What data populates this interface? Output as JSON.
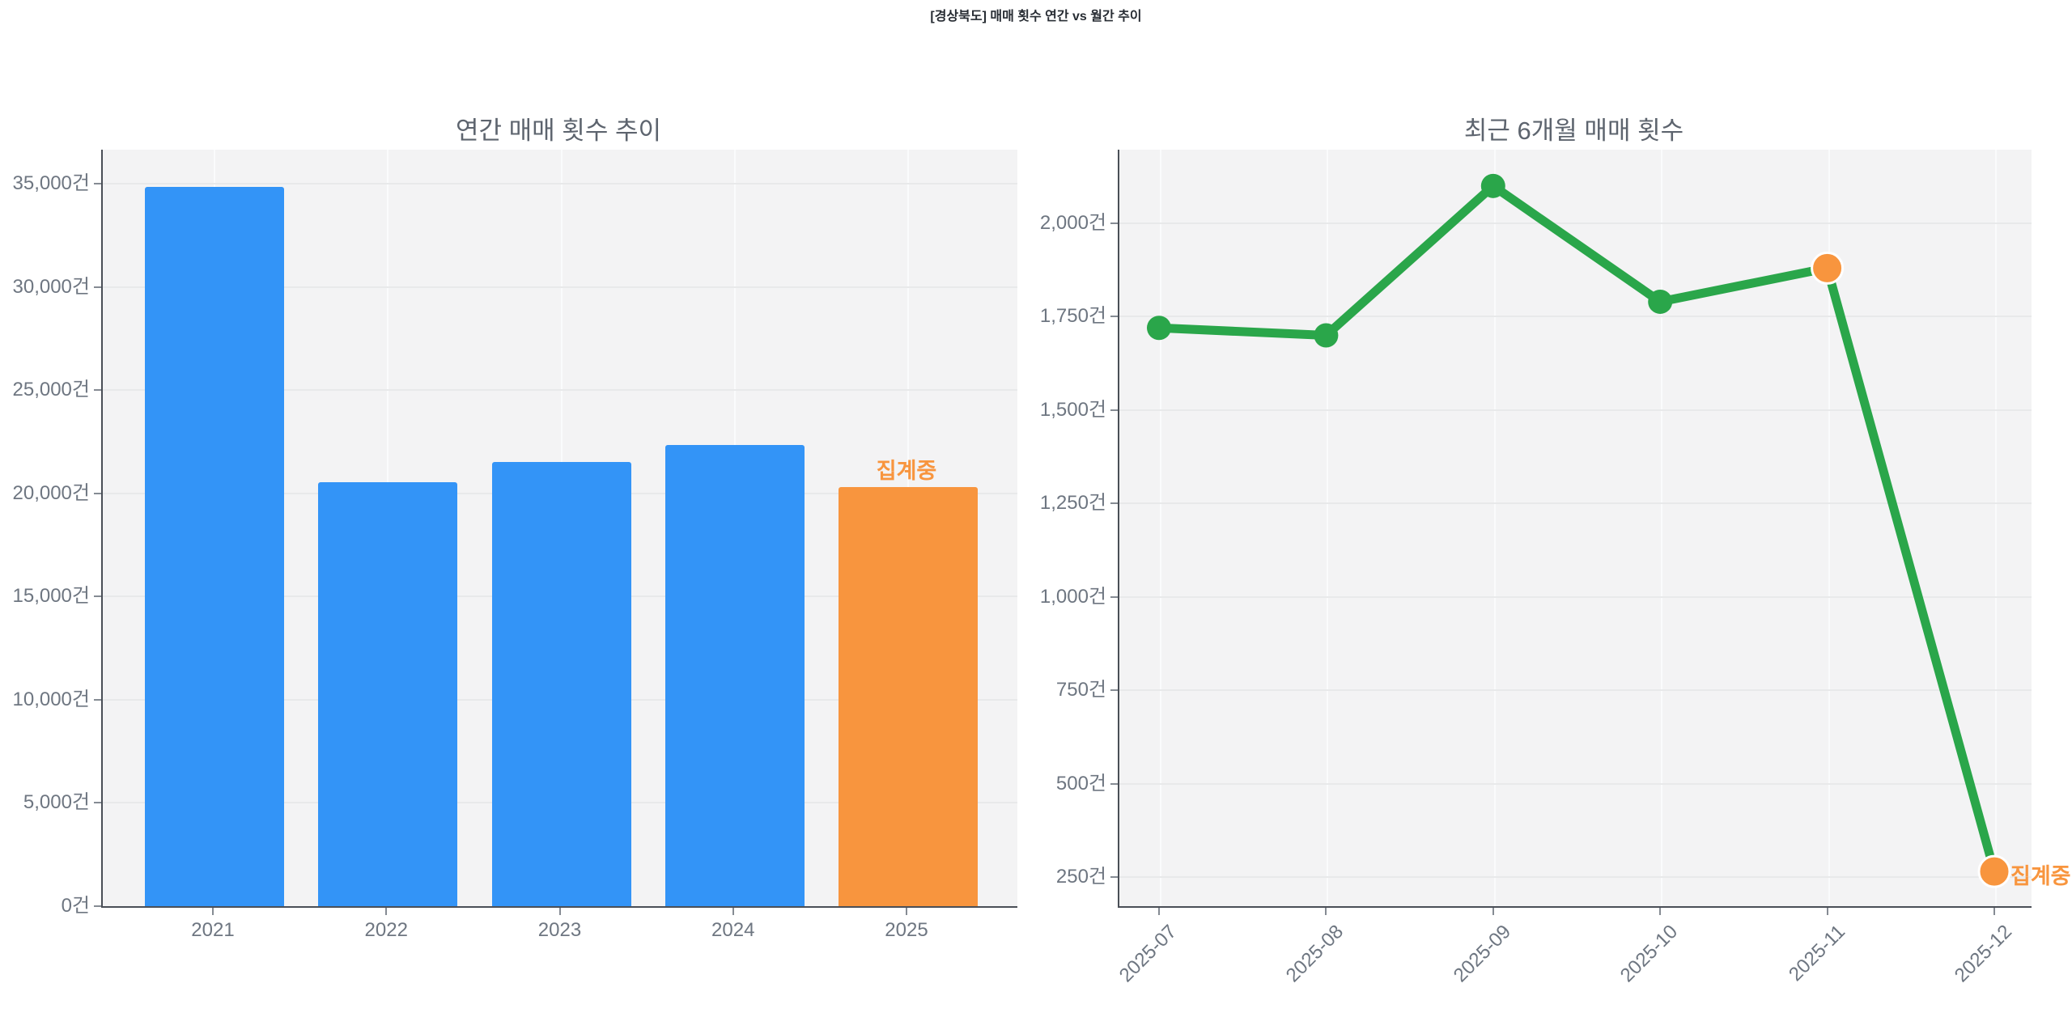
{
  "main_title": "[경상북도] 매매 횟수 연간 vs 월간 추이",
  "unit_suffix": "건",
  "colors": {
    "bar_blue": "#3394f7",
    "accent_orange": "#f8953e",
    "line_green": "#2aa64a",
    "plot_bg": "#f3f3f4",
    "grid_h": "#e8e9ea",
    "grid_v": "#fafbfc",
    "axis_spine": "#4a4f57",
    "tick_label": "#6e7681",
    "title": "#272c33",
    "subtitle": "#5d646e"
  },
  "chart_data": [
    {
      "type": "bar",
      "title": "연간 매매 횟수 추이",
      "categories": [
        "2021",
        "2022",
        "2023",
        "2024",
        "2025"
      ],
      "values": [
        34850,
        20550,
        21500,
        22350,
        20300
      ],
      "bar_colors": [
        "blue",
        "blue",
        "blue",
        "blue",
        "orange"
      ],
      "unit": "건",
      "yticks": [
        0,
        5000,
        10000,
        15000,
        20000,
        25000,
        30000,
        35000
      ],
      "ylim": [
        0,
        36600
      ],
      "grid": true,
      "legend": "none",
      "annotation": {
        "text": "집계중",
        "category": "2025"
      }
    },
    {
      "type": "line",
      "title": "최근 6개월 매매 횟수",
      "x": [
        "2025-07",
        "2025-08",
        "2025-09",
        "2025-10",
        "2025-11",
        "2025-12"
      ],
      "values": [
        1720,
        1700,
        2100,
        1790,
        1880,
        265
      ],
      "marker_colors": [
        "green",
        "green",
        "green",
        "green",
        "orange",
        "orange"
      ],
      "unit": "건",
      "yticks": [
        250,
        500,
        750,
        1000,
        1250,
        1500,
        1750,
        2000
      ],
      "ylim": [
        170,
        2200
      ],
      "grid": true,
      "legend": "none",
      "annotation": {
        "text": "집계중",
        "x": "2025-12"
      }
    }
  ]
}
